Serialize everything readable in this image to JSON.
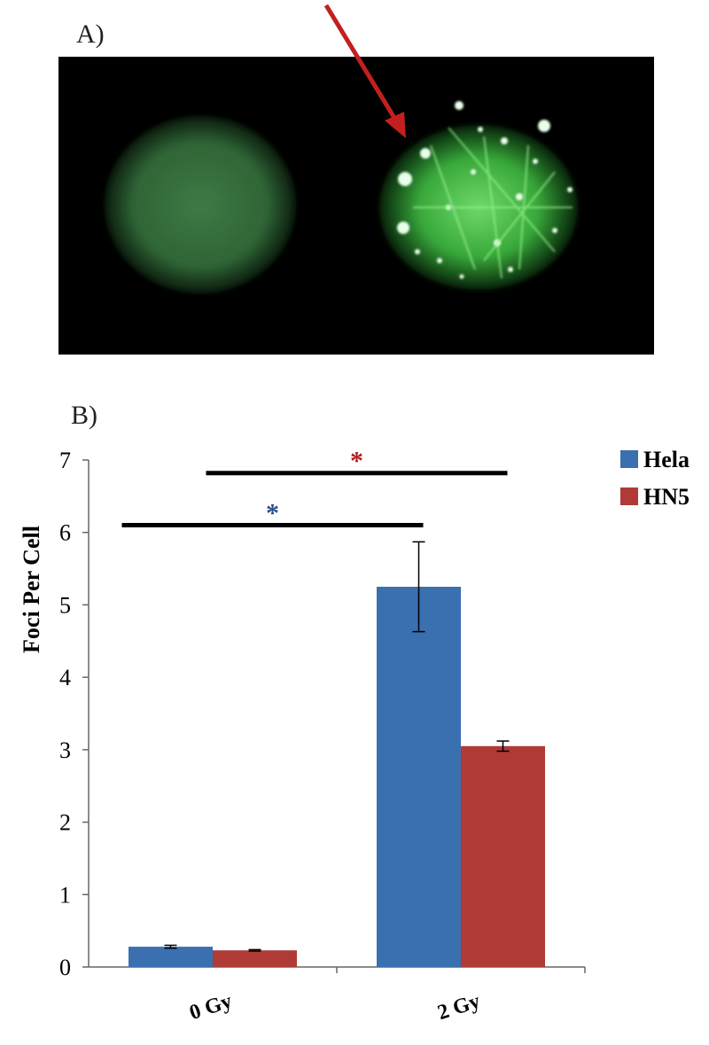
{
  "panels": {
    "a_label": "A)",
    "b_label": "B)"
  },
  "colors": {
    "hela": "#3a6fb0",
    "hn5": "#b03a36",
    "arrow": "#c41f1f",
    "star_blue": "#2a4f8c",
    "star_red": "#b01f1f"
  },
  "chart_data": {
    "type": "bar",
    "categories": [
      "0 Gy",
      "2 Gy"
    ],
    "series": [
      {
        "name": "Hela",
        "values": [
          0.28,
          5.25
        ],
        "errors": [
          0.02,
          0.62
        ]
      },
      {
        "name": "HN5",
        "values": [
          0.23,
          3.05
        ],
        "errors": [
          0.01,
          0.07
        ]
      }
    ],
    "xlabel": "",
    "ylabel": "Foci Per Cell",
    "ylim": [
      0,
      7
    ],
    "yticks": [
      "0",
      "1",
      "2",
      "3",
      "4",
      "5",
      "6",
      "7"
    ],
    "legend_position": "top-right",
    "annotations": [
      {
        "text": "*",
        "series": "Hela",
        "from_category": "0 Gy",
        "to_category": "2 Gy",
        "y": 6.1
      },
      {
        "text": "*",
        "series": "HN5",
        "from_category": "0 Gy",
        "to_category": "2 Gy",
        "y": 6.82
      }
    ]
  }
}
